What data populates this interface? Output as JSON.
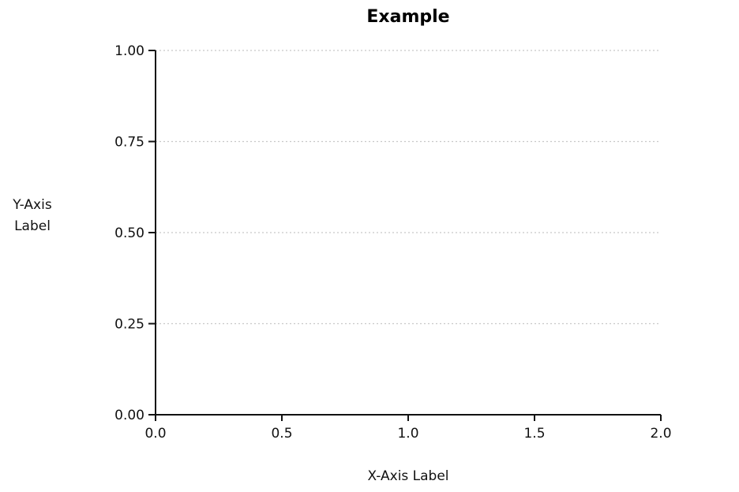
{
  "chart_data": {
    "type": "line",
    "title": "Example",
    "xlabel": "X-Axis Label",
    "ylabel_lines": [
      "Y-Axis",
      "Label"
    ],
    "xlim": [
      0,
      2
    ],
    "ylim": [
      0,
      1
    ],
    "x_ticks": [
      0,
      0.5,
      1,
      1.5,
      2
    ],
    "x_tick_labels": [
      "0.0",
      "0.5",
      "1.0",
      "1.5",
      "2.0"
    ],
    "y_ticks": [
      0,
      0.25,
      0.5,
      0.75,
      1
    ],
    "y_tick_labels": [
      "0.00",
      "0.25",
      "0.50",
      "0.75",
      "1.00"
    ],
    "grid": "horizontal-dotted",
    "series": []
  },
  "colors": {
    "axis": "#111111",
    "grid": "#c8c8c8",
    "text": "#111111"
  }
}
